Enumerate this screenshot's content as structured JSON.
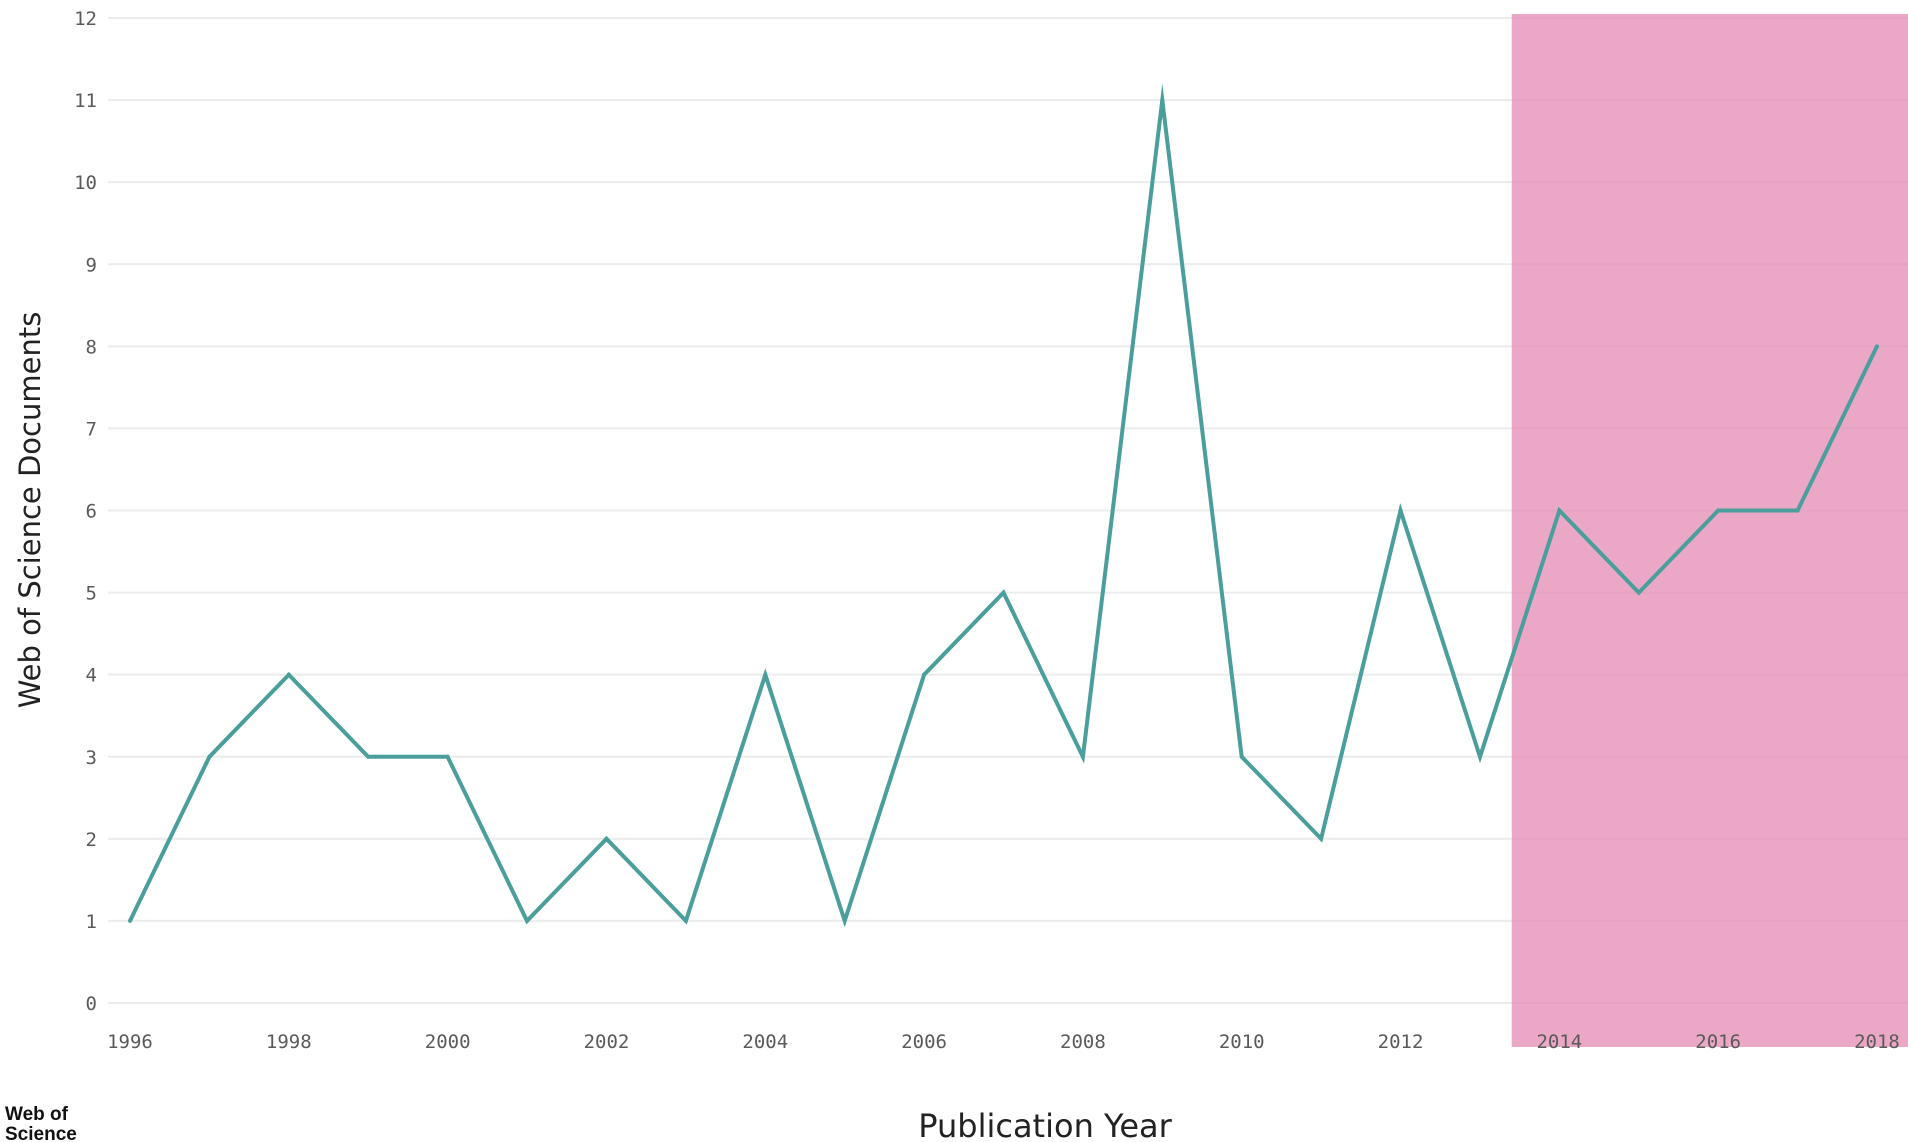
{
  "chart_data": {
    "type": "line",
    "xlabel": "Publication Year",
    "ylabel": "Web of Science Documents",
    "x": [
      1996,
      1997,
      1998,
      1999,
      2000,
      2001,
      2002,
      2003,
      2004,
      2005,
      2006,
      2007,
      2008,
      2009,
      2010,
      2011,
      2012,
      2013,
      2014,
      2015,
      2016,
      2017,
      2018
    ],
    "series": [
      {
        "values": [
          1,
          3,
          4,
          3,
          3,
          1,
          2,
          1,
          4,
          1,
          4,
          5,
          3,
          11,
          3,
          2,
          6,
          3,
          6,
          5,
          6,
          6,
          8
        ]
      }
    ],
    "xticks": [
      "1996",
      "1998",
      "2000",
      "2002",
      "2004",
      "2006",
      "2008",
      "2010",
      "2012",
      "2014",
      "2016",
      "2018"
    ],
    "yticks": [
      "0",
      "1",
      "2",
      "3",
      "4",
      "5",
      "6",
      "7",
      "8",
      "9",
      "10",
      "11",
      "12"
    ],
    "xlim": [
      1996,
      2018
    ],
    "ylim": [
      0,
      12
    ],
    "grid": "horizontal",
    "highlight_range": [
      2013.4,
      2018.4
    ],
    "colors": {
      "line": "#4a9e9b",
      "highlight": "#e48bb3",
      "grid": "#ececec"
    },
    "brand": [
      "Web of",
      "Science"
    ]
  }
}
